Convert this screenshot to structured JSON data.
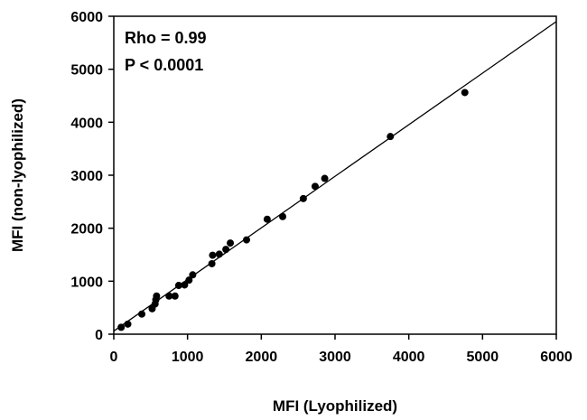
{
  "chart_data": {
    "type": "scatter",
    "xlabel": "MFI (Lyophilized)",
    "ylabel": "MFI (non-lyophilized)",
    "xlim": [
      0,
      6000
    ],
    "ylim": [
      0,
      6000
    ],
    "x_ticks": [
      "0",
      "1000",
      "2000",
      "3000",
      "4000",
      "5000",
      "6000"
    ],
    "y_ticks": [
      "0",
      "1000",
      "2000",
      "3000",
      "4000",
      "5000",
      "6000"
    ],
    "annotations": [
      "Rho = 0.99",
      "P < 0.0001"
    ],
    "grid": false,
    "legend": "none",
    "series": [
      {
        "color": "#000000",
        "points": [
          {
            "x": 100,
            "y": 130
          },
          {
            "x": 190,
            "y": 190
          },
          {
            "x": 380,
            "y": 380
          },
          {
            "x": 520,
            "y": 480
          },
          {
            "x": 560,
            "y": 570
          },
          {
            "x": 570,
            "y": 650
          },
          {
            "x": 580,
            "y": 720
          },
          {
            "x": 750,
            "y": 720
          },
          {
            "x": 830,
            "y": 720
          },
          {
            "x": 880,
            "y": 920
          },
          {
            "x": 960,
            "y": 930
          },
          {
            "x": 1020,
            "y": 1020
          },
          {
            "x": 1070,
            "y": 1120
          },
          {
            "x": 1330,
            "y": 1330
          },
          {
            "x": 1340,
            "y": 1490
          },
          {
            "x": 1430,
            "y": 1510
          },
          {
            "x": 1520,
            "y": 1600
          },
          {
            "x": 1580,
            "y": 1720
          },
          {
            "x": 1800,
            "y": 1780
          },
          {
            "x": 2080,
            "y": 2170
          },
          {
            "x": 2290,
            "y": 2220
          },
          {
            "x": 2570,
            "y": 2560
          },
          {
            "x": 2730,
            "y": 2790
          },
          {
            "x": 2860,
            "y": 2940
          },
          {
            "x": 3750,
            "y": 3730
          },
          {
            "x": 4760,
            "y": 4560
          }
        ]
      }
    ],
    "fit_line": {
      "x": [
        0,
        6000
      ],
      "y": [
        60,
        5900
      ],
      "color": "#000000"
    }
  }
}
